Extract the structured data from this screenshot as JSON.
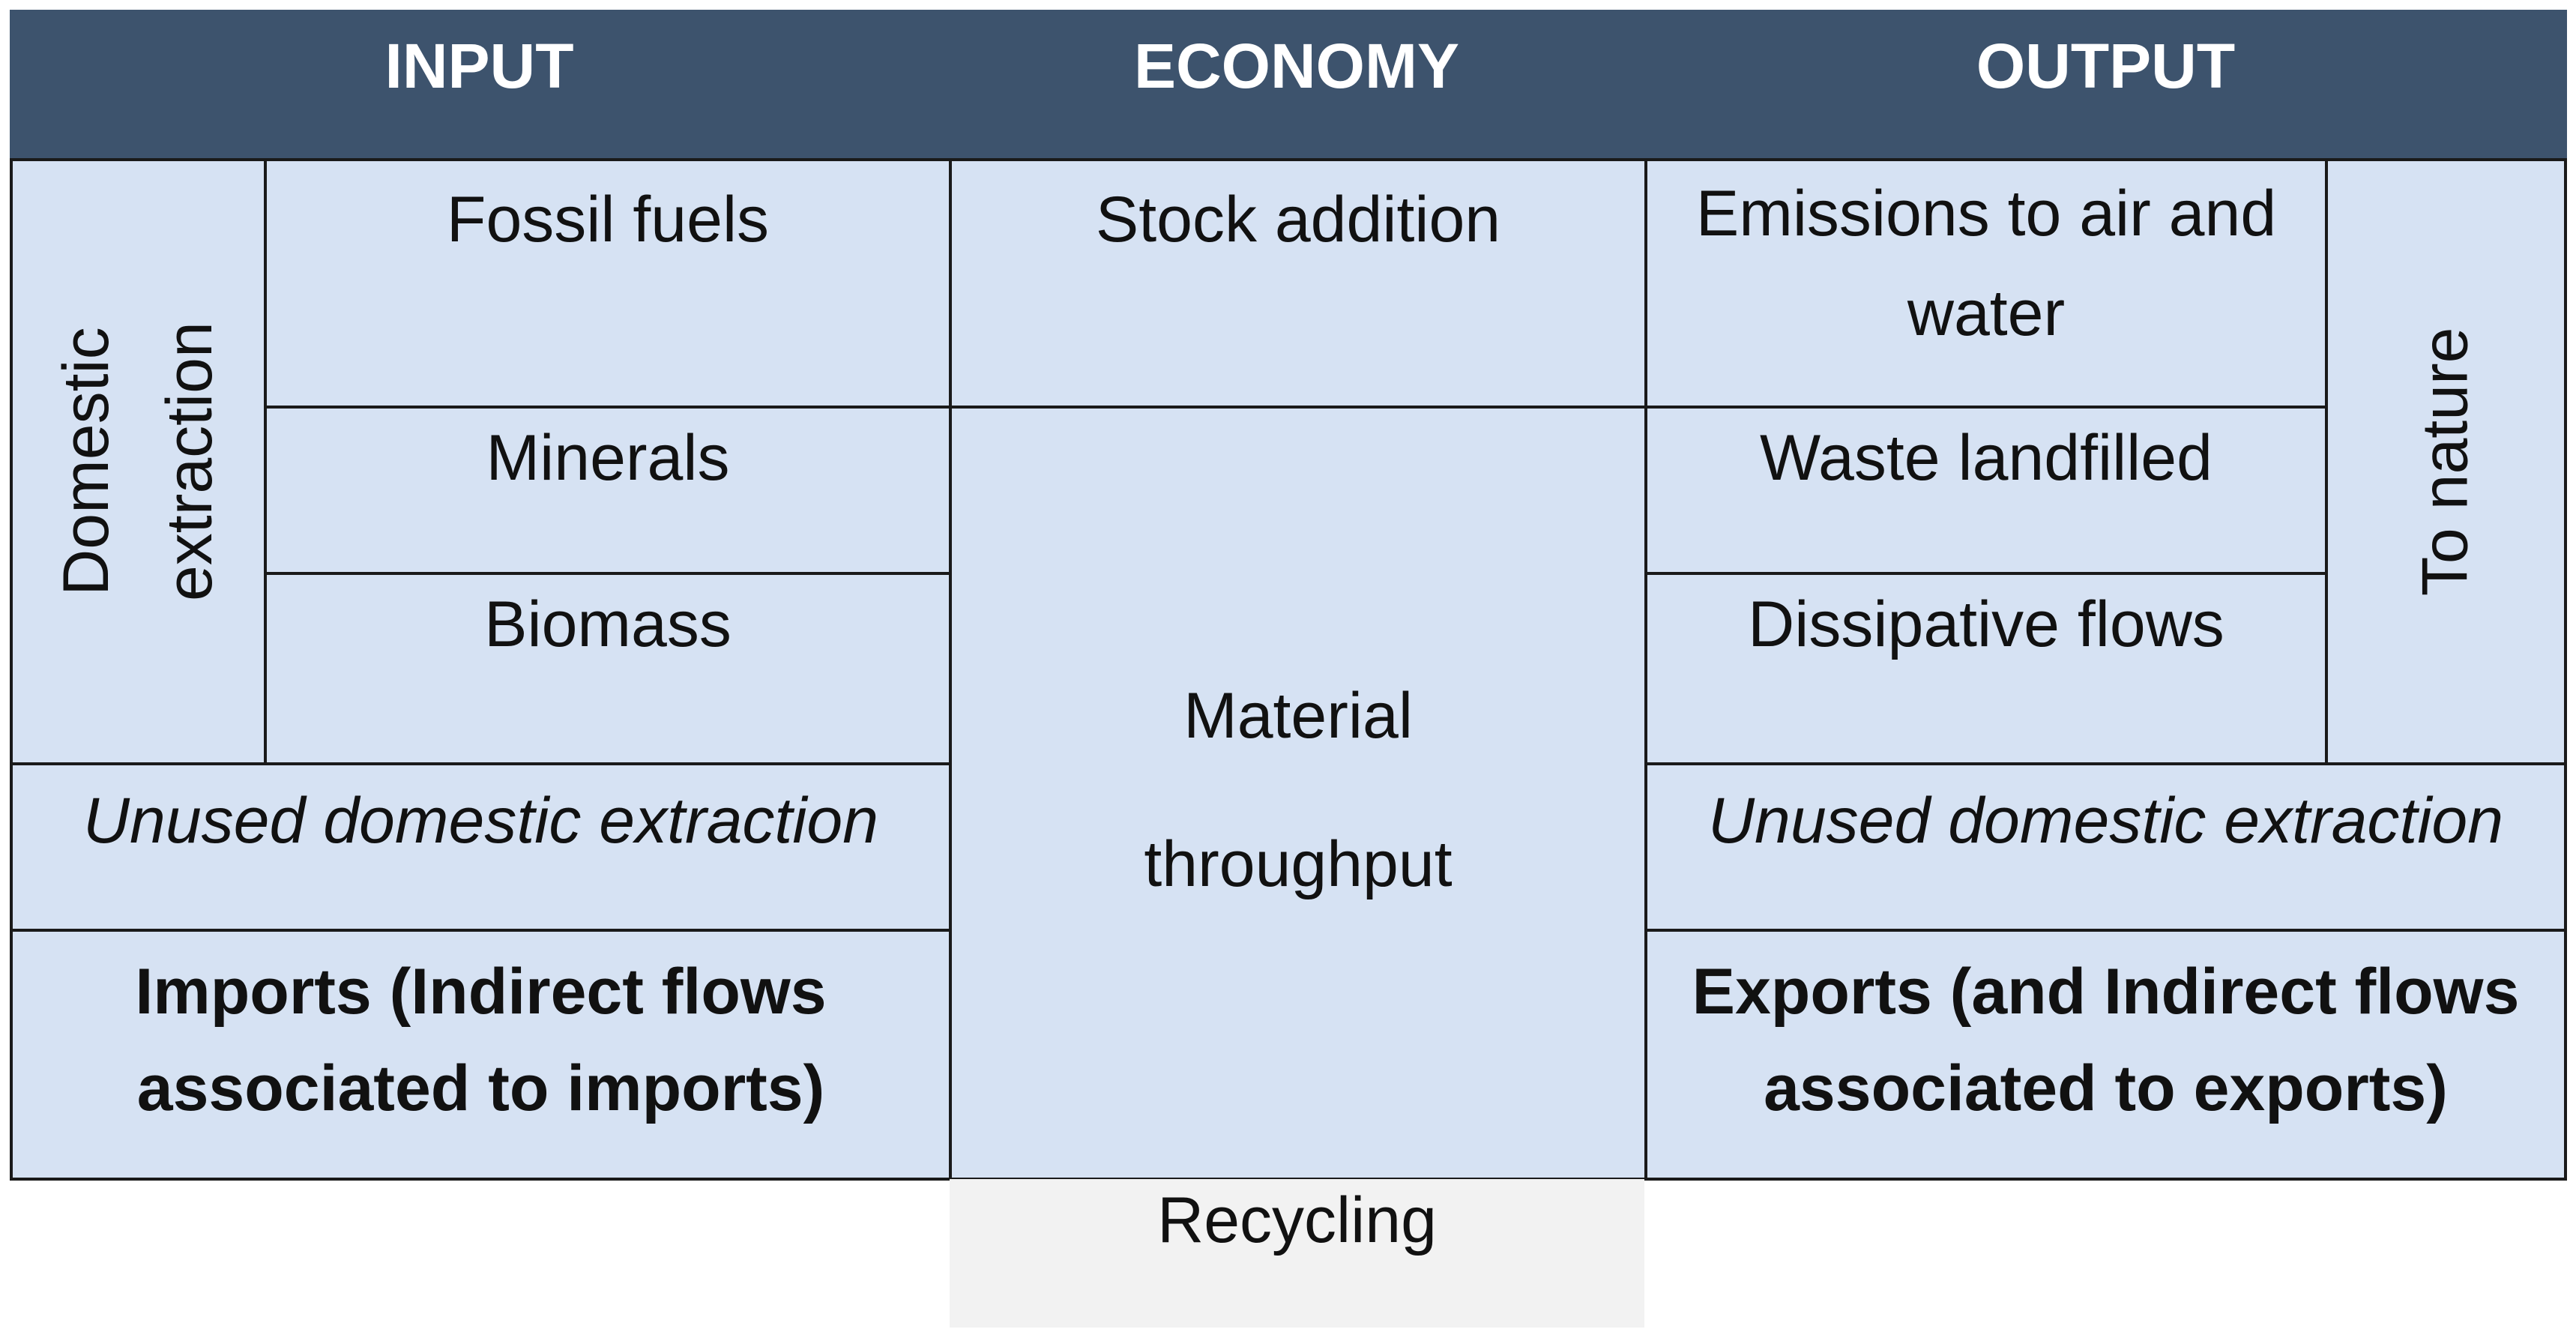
{
  "header": {
    "input": "INPUT",
    "economy": "ECONOMY",
    "output": "OUTPUT"
  },
  "input": {
    "domestic_extraction": [
      "Domestic",
      "extraction"
    ],
    "fossil_fuels": "Fossil fuels",
    "minerals": "Minerals",
    "biomass": "Biomass",
    "unused": "Unused domestic extraction",
    "imports": [
      "Imports (Indirect flows",
      "associated to imports)"
    ]
  },
  "economy": {
    "stock_addition": "Stock addition",
    "material_throughput": [
      "Material",
      "throughput"
    ],
    "recycling": "Recycling"
  },
  "output": {
    "emissions": [
      "Emissions to air and",
      "water"
    ],
    "waste": "Waste landfilled",
    "dissipative": "Dissipative flows",
    "to_nature": "To nature",
    "unused": "Unused domestic extraction",
    "exports": [
      "Exports (and Indirect flows",
      "associated to exports)"
    ]
  },
  "colors": {
    "header_bg": "#3d536d",
    "cell_bg": "#d6e2f3",
    "recycling_bg": "#f2f2f2",
    "border": "#1a1a1a"
  }
}
